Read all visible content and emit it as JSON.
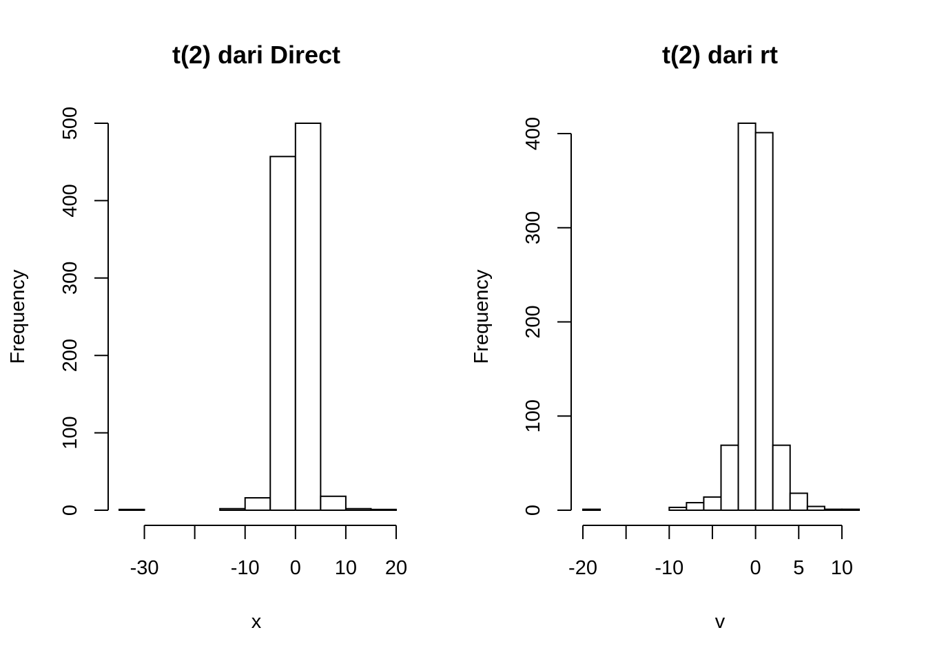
{
  "chart_data": [
    {
      "type": "bar",
      "title": "t(2) dari Direct",
      "xlabel": "x",
      "ylabel": "Frequency",
      "bin_edges": [
        -35,
        -30,
        -25,
        -20,
        -15,
        -10,
        -5,
        0,
        5,
        10,
        15,
        20
      ],
      "values": [
        1,
        0,
        0,
        0,
        2,
        16,
        457,
        500,
        18,
        2,
        1
      ],
      "xlim": [
        -35,
        20
      ],
      "ylim": [
        0,
        500
      ],
      "xticks": [
        -30,
        -20,
        -10,
        0,
        10,
        20
      ],
      "xtick_labels": [
        "-30",
        "",
        "-10",
        "0",
        "10",
        "20"
      ],
      "yticks": [
        0,
        100,
        200,
        300,
        400,
        500
      ],
      "ytick_labels": [
        "0",
        "100",
        "200",
        "300",
        "400",
        "500"
      ],
      "grid": false
    },
    {
      "type": "bar",
      "title": "t(2) dari rt",
      "xlabel": "v",
      "ylabel": "Frequency",
      "bin_edges": [
        -20,
        -18,
        -16,
        -14,
        -12,
        -10,
        -8,
        -6,
        -4,
        -2,
        0,
        2,
        4,
        6,
        8,
        10,
        12
      ],
      "values": [
        1,
        0,
        0,
        0,
        0,
        3,
        8,
        14,
        69,
        411,
        401,
        69,
        18,
        4,
        1,
        1
      ],
      "xlim": [
        -20,
        12
      ],
      "ylim": [
        0,
        400
      ],
      "xticks": [
        -20,
        -15,
        -10,
        -5,
        0,
        5,
        10
      ],
      "xtick_labels": [
        "-20",
        "",
        "-10",
        "",
        "0",
        "5",
        "10"
      ],
      "yticks": [
        0,
        100,
        200,
        300,
        400
      ],
      "ytick_labels": [
        "0",
        "100",
        "200",
        "300",
        "400"
      ],
      "grid": false
    }
  ]
}
